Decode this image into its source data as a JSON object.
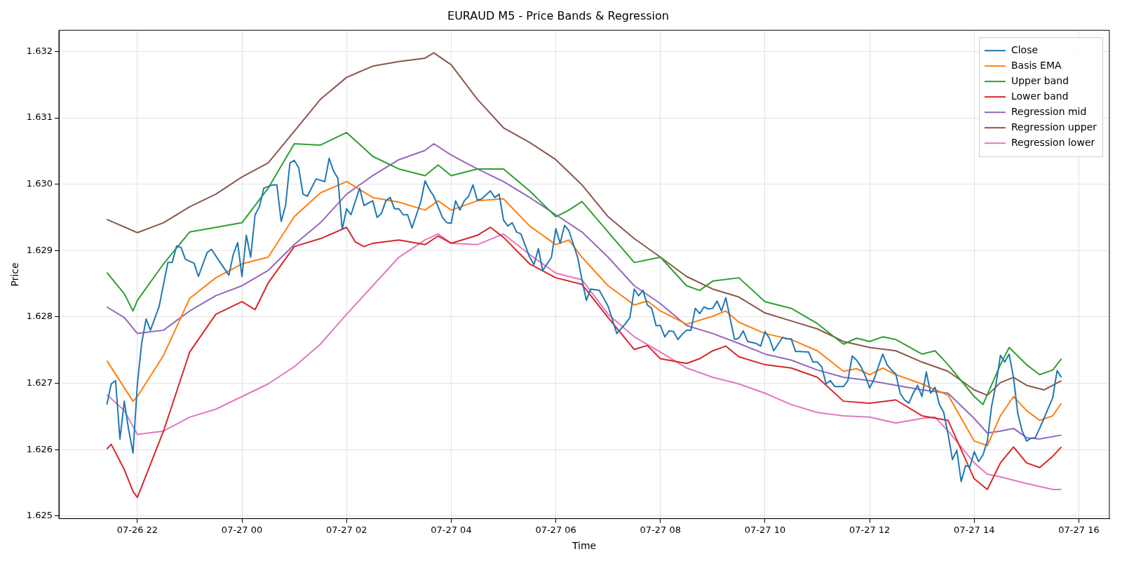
{
  "chart_data": {
    "type": "line",
    "title": "EURAUD M5 - Price Bands & Regression",
    "xlabel": "Time",
    "ylabel": "Price",
    "xlim": [
      "--07-26T20:30",
      "--07-27T16:35"
    ],
    "xticks": [
      {
        "value": "--07-26T22:00",
        "label": "07-26 22"
      },
      {
        "value": "--07-27T00:00",
        "label": "07-27 00"
      },
      {
        "value": "--07-27T02:00",
        "label": "07-27 02"
      },
      {
        "value": "--07-27T04:00",
        "label": "07-27 04"
      },
      {
        "value": "--07-27T06:00",
        "label": "07-27 06"
      },
      {
        "value": "--07-27T08:00",
        "label": "07-27 08"
      },
      {
        "value": "--07-27T10:00",
        "label": "07-27 10"
      },
      {
        "value": "--07-27T12:00",
        "label": "07-27 12"
      },
      {
        "value": "--07-27T14:00",
        "label": "07-27 14"
      },
      {
        "value": "--07-27T16:00",
        "label": "07-27 16"
      }
    ],
    "ylim": [
      1.62496,
      1.63232
    ],
    "yticks": [
      {
        "value": 1.625,
        "label": "1.625"
      },
      {
        "value": 1.626,
        "label": "1.626"
      },
      {
        "value": 1.627,
        "label": "1.627"
      },
      {
        "value": 1.628,
        "label": "1.628"
      },
      {
        "value": 1.629,
        "label": "1.629"
      },
      {
        "value": 1.63,
        "label": "1.630"
      },
      {
        "value": 1.631,
        "label": "1.631"
      },
      {
        "value": 1.632,
        "label": "1.632"
      }
    ],
    "grid": true,
    "legend": "top right",
    "marker": "none",
    "line_style": "solid",
    "series": [
      {
        "name": "Close",
        "color": "#1f77b4",
        "x": [
          "--07-26T21:25",
          "--07-26T21:30",
          "--07-26T21:35",
          "--07-26T21:40",
          "--07-26T21:45",
          "--07-26T21:50",
          "--07-26T21:55",
          "--07-26T22:00",
          "--07-26T22:05",
          "--07-26T22:10",
          "--07-26T22:15",
          "--07-26T22:25",
          "--07-26T22:35",
          "--07-26T22:40",
          "--07-26T22:45",
          "--07-26T22:50",
          "--07-26T22:55",
          "--07-26T23:05",
          "--07-26T23:10",
          "--07-26T23:20",
          "--07-26T23:25",
          "--07-26T23:35",
          "--07-26T23:45",
          "--07-26T23:50",
          "--07-26T23:55",
          "--07-27T00:00",
          "--07-27T00:05",
          "--07-27T00:10",
          "--07-27T00:15",
          "--07-27T00:20",
          "--07-27T00:25",
          "--07-27T00:35",
          "--07-27T00:40",
          "--07-27T00:45",
          "--07-27T00:50",
          "--07-27T00:55",
          "--07-27T01:00",
          "--07-27T01:05",
          "--07-27T01:10",
          "--07-27T01:15",
          "--07-27T01:25",
          "--07-27T01:35",
          "--07-27T01:40",
          "--07-27T01:45",
          "--07-27T01:50",
          "--07-27T01:55",
          "--07-27T02:00",
          "--07-27T02:05",
          "--07-27T02:15",
          "--07-27T02:20",
          "--07-27T02:30",
          "--07-27T02:35",
          "--07-27T02:40",
          "--07-27T02:45",
          "--07-27T02:50",
          "--07-27T02:55",
          "--07-27T03:00",
          "--07-27T03:05",
          "--07-27T03:10",
          "--07-27T03:15",
          "--07-27T03:25",
          "--07-27T03:30",
          "--07-27T03:35",
          "--07-27T03:40",
          "--07-27T03:50",
          "--07-27T03:55",
          "--07-27T04:00",
          "--07-27T04:05",
          "--07-27T04:10",
          "--07-27T04:15",
          "--07-27T04:20",
          "--07-27T04:25",
          "--07-27T04:30",
          "--07-27T04:35",
          "--07-27T04:45",
          "--07-27T04:50",
          "--07-27T04:55",
          "--07-27T05:00",
          "--07-27T05:05",
          "--07-27T05:10",
          "--07-27T05:15",
          "--07-27T05:20",
          "--07-27T05:30",
          "--07-27T05:35",
          "--07-27T05:40",
          "--07-27T05:45",
          "--07-27T05:55",
          "--07-27T06:00",
          "--07-27T06:05",
          "--07-27T06:10",
          "--07-27T06:15",
          "--07-27T06:25",
          "--07-27T06:30",
          "--07-27T06:35",
          "--07-27T06:40",
          "--07-27T06:50",
          "--07-27T07:00",
          "--07-27T07:10",
          "--07-27T07:20",
          "--07-27T07:25",
          "--07-27T07:30",
          "--07-27T07:35",
          "--07-27T07:40",
          "--07-27T07:45",
          "--07-27T07:50",
          "--07-27T07:55",
          "--07-27T08:00",
          "--07-27T08:05",
          "--07-27T08:10",
          "--07-27T08:15",
          "--07-27T08:20",
          "--07-27T08:25",
          "--07-27T08:30",
          "--07-27T08:35",
          "--07-27T08:40",
          "--07-27T08:45",
          "--07-27T08:50",
          "--07-27T08:55",
          "--07-27T09:00",
          "--07-27T09:05",
          "--07-27T09:10",
          "--07-27T09:15",
          "--07-27T09:25",
          "--07-27T09:30",
          "--07-27T09:35",
          "--07-27T09:40",
          "--07-27T09:50",
          "--07-27T09:55",
          "--07-27T10:00",
          "--07-27T10:05",
          "--07-27T10:10",
          "--07-27T10:15",
          "--07-27T10:20",
          "--07-27T10:25",
          "--07-27T10:30",
          "--07-27T10:35",
          "--07-27T10:40",
          "--07-27T10:50",
          "--07-27T10:55",
          "--07-27T11:00",
          "--07-27T11:05",
          "--07-27T11:10",
          "--07-27T11:15",
          "--07-27T11:20",
          "--07-27T11:30",
          "--07-27T11:35",
          "--07-27T11:40",
          "--07-27T11:45",
          "--07-27T11:50",
          "--07-27T11:55",
          "--07-27T12:00",
          "--07-27T12:05",
          "--07-27T12:10",
          "--07-27T12:15",
          "--07-27T12:20",
          "--07-27T12:25",
          "--07-27T12:30",
          "--07-27T12:35",
          "--07-27T12:40",
          "--07-27T12:45",
          "--07-27T12:50",
          "--07-27T12:55",
          "--07-27T13:00",
          "--07-27T13:05",
          "--07-27T13:10",
          "--07-27T13:15",
          "--07-27T13:20",
          "--07-27T13:25",
          "--07-27T13:30",
          "--07-27T13:35",
          "--07-27T13:40",
          "--07-27T13:45",
          "--07-27T13:50",
          "--07-27T13:55",
          "--07-27T14:00",
          "--07-27T14:05",
          "--07-27T14:10",
          "--07-27T14:15",
          "--07-27T14:20",
          "--07-27T14:25",
          "--07-27T14:30",
          "--07-27T14:35",
          "--07-27T14:40",
          "--07-27T14:45",
          "--07-27T14:50",
          "--07-27T14:55",
          "--07-27T15:00",
          "--07-27T15:05",
          "--07-27T15:10",
          "--07-27T15:15",
          "--07-27T15:20",
          "--07-27T15:25",
          "--07-27T15:30",
          "--07-27T15:35",
          "--07-27T15:40"
        ],
        "values": [
          1.62668,
          1.62699,
          1.62704,
          1.62616,
          1.62673,
          1.6263,
          1.62595,
          1.62699,
          1.62761,
          1.62797,
          1.6278,
          1.62816,
          1.62882,
          1.62882,
          1.62907,
          1.62905,
          1.62887,
          1.62881,
          1.62861,
          1.62897,
          1.62902,
          1.62882,
          1.62863,
          1.62894,
          1.62912,
          1.62861,
          1.62923,
          1.6289,
          1.62954,
          1.62966,
          1.62994,
          1.62999,
          1.62999,
          1.62944,
          1.62968,
          1.63032,
          1.63036,
          1.63025,
          1.62985,
          1.62982,
          1.63008,
          1.63004,
          1.63039,
          1.6302,
          1.63009,
          1.62932,
          1.62963,
          1.62954,
          1.62994,
          1.62968,
          1.62975,
          1.6295,
          1.62956,
          1.62975,
          1.6298,
          1.62963,
          1.62963,
          1.62954,
          1.62954,
          1.62934,
          1.62973,
          1.63005,
          1.62992,
          1.62982,
          1.6295,
          1.62942,
          1.62941,
          1.62975,
          1.62961,
          1.62975,
          1.62982,
          1.62999,
          1.62976,
          1.62978,
          1.6299,
          1.6298,
          1.62985,
          1.62946,
          1.62937,
          1.62942,
          1.62928,
          1.62925,
          1.6289,
          1.62879,
          1.62903,
          1.6287,
          1.6289,
          1.62933,
          1.62911,
          1.62938,
          1.6293,
          1.6289,
          1.62856,
          1.62825,
          1.62842,
          1.6284,
          1.62816,
          1.62775,
          1.6279,
          1.62799,
          1.62842,
          1.62832,
          1.6284,
          1.62818,
          1.62813,
          1.62787,
          1.62787,
          1.6277,
          1.62779,
          1.62778,
          1.62766,
          1.62774,
          1.6278,
          1.6278,
          1.62813,
          1.62805,
          1.62815,
          1.62812,
          1.62813,
          1.62824,
          1.62809,
          1.62829,
          1.62766,
          1.62768,
          1.62779,
          1.62763,
          1.6276,
          1.62756,
          1.62778,
          1.62768,
          1.62749,
          1.62759,
          1.62769,
          1.62767,
          1.62767,
          1.62748,
          1.62748,
          1.62747,
          1.62732,
          1.62732,
          1.62725,
          1.62699,
          1.62704,
          1.62695,
          1.62695,
          1.62704,
          1.62741,
          1.62735,
          1.62725,
          1.62711,
          1.62693,
          1.62706,
          1.62725,
          1.62744,
          1.62728,
          1.6272,
          1.62714,
          1.62685,
          1.62675,
          1.6267,
          1.62685,
          1.62697,
          1.6268,
          1.62717,
          1.62685,
          1.62694,
          1.62668,
          1.62656,
          1.62623,
          1.62585,
          1.62599,
          1.62552,
          1.62576,
          1.62574,
          1.62597,
          1.62582,
          1.62592,
          1.62613,
          1.62666,
          1.62699,
          1.62742,
          1.62732,
          1.62744,
          1.62709,
          1.62654,
          1.62628,
          1.62613,
          1.62617,
          1.62618,
          1.62632,
          1.62647,
          1.62663,
          1.62678,
          1.62719,
          1.62709
        ]
      },
      {
        "name": "Basis EMA",
        "color": "#ff7f0e",
        "x": [
          "--07-26T21:25",
          "--07-26T21:55",
          "--07-26T22:00",
          "--07-26T22:30",
          "--07-26T23:00",
          "--07-26T23:30",
          "--07-27T00:00",
          "--07-27T00:30",
          "--07-27T01:00",
          "--07-27T01:30",
          "--07-27T02:00",
          "--07-27T02:30",
          "--07-27T03:00",
          "--07-27T03:30",
          "--07-27T03:45",
          "--07-27T04:00",
          "--07-27T04:30",
          "--07-27T05:00",
          "--07-27T05:30",
          "--07-27T06:00",
          "--07-27T06:15",
          "--07-27T06:30",
          "--07-27T07:00",
          "--07-27T07:30",
          "--07-27T07:45",
          "--07-27T08:00",
          "--07-27T08:30",
          "--07-27T09:00",
          "--07-27T09:15",
          "--07-27T09:30",
          "--07-27T10:00",
          "--07-27T10:30",
          "--07-27T11:00",
          "--07-27T11:30",
          "--07-27T11:45",
          "--07-27T12:00",
          "--07-27T12:15",
          "--07-27T12:30",
          "--07-27T13:00",
          "--07-27T13:30",
          "--07-27T14:00",
          "--07-27T14:15",
          "--07-27T14:30",
          "--07-27T14:45",
          "--07-27T15:00",
          "--07-27T15:15",
          "--07-27T15:30",
          "--07-27T15:40"
        ],
        "values": [
          1.62734,
          1.62673,
          1.6268,
          1.62742,
          1.62828,
          1.62859,
          1.6288,
          1.6289,
          1.62951,
          1.62987,
          1.63004,
          1.6298,
          1.62973,
          1.62961,
          1.62975,
          1.62961,
          1.62975,
          1.62978,
          1.62937,
          1.62909,
          1.62916,
          1.6289,
          1.62847,
          1.62818,
          1.62824,
          1.62809,
          1.62789,
          1.62801,
          1.62809,
          1.62792,
          1.62775,
          1.62766,
          1.62749,
          1.62718,
          1.62722,
          1.62713,
          1.62723,
          1.62713,
          1.62699,
          1.62682,
          1.62613,
          1.62606,
          1.62651,
          1.6268,
          1.62659,
          1.62644,
          1.62651,
          1.6267
        ]
      },
      {
        "name": "Upper band",
        "color": "#2ca02c",
        "x": [
          "--07-26T21:25",
          "--07-26T21:45",
          "--07-26T21:55",
          "--07-26T22:00",
          "--07-26T22:30",
          "--07-26T23:00",
          "--07-26T23:30",
          "--07-27T00:00",
          "--07-27T00:30",
          "--07-27T01:00",
          "--07-27T01:30",
          "--07-27T02:00",
          "--07-27T02:30",
          "--07-27T03:00",
          "--07-27T03:30",
          "--07-27T03:45",
          "--07-27T04:00",
          "--07-27T04:30",
          "--07-27T05:00",
          "--07-27T05:30",
          "--07-27T06:00",
          "--07-27T06:15",
          "--07-27T06:30",
          "--07-27T07:00",
          "--07-27T07:30",
          "--07-27T08:00",
          "--07-27T08:30",
          "--07-27T08:45",
          "--07-27T09:00",
          "--07-27T09:30",
          "--07-27T10:00",
          "--07-27T10:30",
          "--07-27T11:00",
          "--07-27T11:30",
          "--07-27T11:45",
          "--07-27T12:00",
          "--07-27T12:15",
          "--07-27T12:30",
          "--07-27T13:00",
          "--07-27T13:15",
          "--07-27T13:30",
          "--07-27T14:00",
          "--07-27T14:10",
          "--07-27T14:30",
          "--07-27T14:40",
          "--07-27T15:00",
          "--07-27T15:15",
          "--07-27T15:30",
          "--07-27T15:40"
        ],
        "values": [
          1.62867,
          1.62835,
          1.62809,
          1.62825,
          1.6288,
          1.62928,
          1.62935,
          1.62942,
          1.62994,
          1.63061,
          1.63059,
          1.63078,
          1.63042,
          1.63023,
          1.63013,
          1.63029,
          1.63013,
          1.63023,
          1.63023,
          1.6299,
          1.62951,
          1.62961,
          1.62974,
          1.62928,
          1.62882,
          1.6289,
          1.62847,
          1.6284,
          1.62854,
          1.62859,
          1.62823,
          1.62813,
          1.6279,
          1.62759,
          1.62768,
          1.62763,
          1.6277,
          1.62766,
          1.62744,
          1.62749,
          1.62728,
          1.6268,
          1.62668,
          1.62728,
          1.62754,
          1.62728,
          1.62713,
          1.6272,
          1.62737
        ]
      },
      {
        "name": "Lower band",
        "color": "#d62728",
        "x": [
          "--07-26T21:25",
          "--07-26T21:30",
          "--07-26T21:45",
          "--07-26T21:55",
          "--07-26T22:00",
          "--07-26T22:30",
          "--07-26T23:00",
          "--07-26T23:30",
          "--07-27T00:00",
          "--07-27T00:15",
          "--07-27T00:30",
          "--07-27T01:00",
          "--07-27T01:30",
          "--07-27T02:00",
          "--07-27T02:10",
          "--07-27T02:20",
          "--07-27T02:30",
          "--07-27T03:00",
          "--07-27T03:30",
          "--07-27T03:45",
          "--07-27T04:00",
          "--07-27T04:30",
          "--07-27T04:45",
          "--07-27T05:00",
          "--07-27T05:30",
          "--07-27T06:00",
          "--07-27T06:30",
          "--07-27T07:00",
          "--07-27T07:30",
          "--07-27T07:45",
          "--07-27T08:00",
          "--07-27T08:30",
          "--07-27T08:45",
          "--07-27T09:00",
          "--07-27T09:15",
          "--07-27T09:30",
          "--07-27T10:00",
          "--07-27T10:30",
          "--07-27T11:00",
          "--07-27T11:30",
          "--07-27T12:00",
          "--07-27T12:30",
          "--07-27T13:00",
          "--07-27T13:30",
          "--07-27T14:00",
          "--07-27T14:15",
          "--07-27T14:30",
          "--07-27T14:45",
          "--07-27T15:00",
          "--07-27T15:15",
          "--07-27T15:30",
          "--07-27T15:40"
        ],
        "values": [
          1.62601,
          1.62608,
          1.6257,
          1.62537,
          1.62528,
          1.62628,
          1.62747,
          1.62804,
          1.62823,
          1.62811,
          1.62851,
          1.62906,
          1.62918,
          1.62935,
          1.62913,
          1.62906,
          1.62911,
          1.62916,
          1.62909,
          1.62922,
          1.62911,
          1.62923,
          1.62935,
          1.6292,
          1.6288,
          1.62859,
          1.62849,
          1.62799,
          1.62751,
          1.62757,
          1.62737,
          1.6273,
          1.62737,
          1.62749,
          1.62756,
          1.6274,
          1.62728,
          1.62723,
          1.62709,
          1.62673,
          1.6267,
          1.62675,
          1.62651,
          1.62644,
          1.62556,
          1.6254,
          1.6258,
          1.62604,
          1.6258,
          1.62573,
          1.6259,
          1.62604
        ]
      },
      {
        "name": "Regression mid",
        "color": "#9467bd",
        "x": [
          "--07-26T21:25",
          "--07-26T21:45",
          "--07-26T22:00",
          "--07-26T22:30",
          "--07-26T23:00",
          "--07-26T23:30",
          "--07-27T00:00",
          "--07-27T00:30",
          "--07-27T01:00",
          "--07-27T01:30",
          "--07-27T02:00",
          "--07-27T02:30",
          "--07-27T03:00",
          "--07-27T03:30",
          "--07-27T03:40",
          "--07-27T04:00",
          "--07-27T04:30",
          "--07-27T05:00",
          "--07-27T05:30",
          "--07-27T06:00",
          "--07-27T06:30",
          "--07-27T07:00",
          "--07-27T07:30",
          "--07-27T08:00",
          "--07-27T08:30",
          "--07-27T09:00",
          "--07-27T09:30",
          "--07-27T10:00",
          "--07-27T10:30",
          "--07-27T11:00",
          "--07-27T11:30",
          "--07-27T12:00",
          "--07-27T12:30",
          "--07-27T13:00",
          "--07-27T13:30",
          "--07-27T14:00",
          "--07-27T14:15",
          "--07-27T14:30",
          "--07-27T14:45",
          "--07-27T15:00",
          "--07-27T15:15",
          "--07-27T15:40"
        ],
        "values": [
          1.62815,
          1.62799,
          1.62775,
          1.6278,
          1.62809,
          1.62832,
          1.62847,
          1.6287,
          1.62909,
          1.62942,
          1.62985,
          1.63013,
          1.63037,
          1.63051,
          1.63061,
          1.63044,
          1.63023,
          1.63004,
          1.6298,
          1.62954,
          1.62928,
          1.6289,
          1.62847,
          1.6282,
          1.62787,
          1.62775,
          1.6276,
          1.62744,
          1.62735,
          1.6272,
          1.62709,
          1.62704,
          1.62697,
          1.6269,
          1.62685,
          1.62647,
          1.62625,
          1.62628,
          1.62632,
          1.62618,
          1.62616,
          1.62622
        ]
      },
      {
        "name": "Regression upper",
        "color": "#8c564b",
        "x": [
          "--07-26T21:25",
          "--07-26T22:00",
          "--07-26T22:30",
          "--07-26T23:00",
          "--07-26T23:30",
          "--07-27T00:00",
          "--07-27T00:30",
          "--07-27T01:00",
          "--07-27T01:30",
          "--07-27T02:00",
          "--07-27T02:30",
          "--07-27T03:00",
          "--07-27T03:30",
          "--07-27T03:40",
          "--07-27T04:00",
          "--07-27T04:30",
          "--07-27T05:00",
          "--07-27T05:30",
          "--07-27T06:00",
          "--07-27T06:30",
          "--07-27T07:00",
          "--07-27T07:30",
          "--07-27T08:00",
          "--07-27T08:30",
          "--07-27T09:00",
          "--07-27T09:30",
          "--07-27T10:00",
          "--07-27T10:30",
          "--07-27T11:00",
          "--07-27T11:30",
          "--07-27T12:00",
          "--07-27T12:30",
          "--07-27T13:00",
          "--07-27T13:30",
          "--07-27T14:00",
          "--07-27T14:15",
          "--07-27T14:30",
          "--07-27T14:45",
          "--07-27T15:00",
          "--07-27T15:20",
          "--07-27T15:40"
        ],
        "values": [
          1.62947,
          1.62927,
          1.62942,
          1.62966,
          1.62985,
          1.63011,
          1.63032,
          1.6308,
          1.63128,
          1.63161,
          1.63178,
          1.63185,
          1.6319,
          1.63198,
          1.6318,
          1.63128,
          1.63085,
          1.63063,
          1.63037,
          1.62999,
          1.62951,
          1.62918,
          1.6289,
          1.62861,
          1.62842,
          1.6283,
          1.62806,
          1.62794,
          1.62782,
          1.62763,
          1.62754,
          1.62749,
          1.62732,
          1.62718,
          1.6269,
          1.62682,
          1.62701,
          1.62709,
          1.62697,
          1.6269,
          1.62704
        ]
      },
      {
        "name": "Regression lower",
        "color": "#e377c2",
        "x": [
          "--07-26T21:25",
          "--07-26T21:45",
          "--07-26T22:00",
          "--07-26T22:30",
          "--07-26T23:00",
          "--07-26T23:30",
          "--07-27T00:00",
          "--07-27T00:30",
          "--07-27T01:00",
          "--07-27T01:30",
          "--07-27T02:00",
          "--07-27T02:30",
          "--07-27T03:00",
          "--07-27T03:30",
          "--07-27T03:45",
          "--07-27T04:00",
          "--07-27T04:30",
          "--07-27T05:00",
          "--07-27T05:30",
          "--07-27T06:00",
          "--07-27T06:30",
          "--07-27T07:00",
          "--07-27T07:30",
          "--07-27T08:00",
          "--07-27T08:30",
          "--07-27T09:00",
          "--07-27T09:30",
          "--07-27T10:00",
          "--07-27T10:30",
          "--07-27T11:00",
          "--07-27T11:30",
          "--07-27T12:00",
          "--07-27T12:30",
          "--07-27T13:00",
          "--07-27T13:15",
          "--07-27T13:30",
          "--07-27T14:00",
          "--07-27T14:15",
          "--07-27T14:30",
          "--07-27T15:00",
          "--07-27T15:30",
          "--07-27T15:40"
        ],
        "values": [
          1.62683,
          1.62659,
          1.62623,
          1.62628,
          1.62649,
          1.62661,
          1.6268,
          1.62699,
          1.62725,
          1.62759,
          1.62804,
          1.62847,
          1.6289,
          1.62916,
          1.62925,
          1.62911,
          1.62909,
          1.62925,
          1.62894,
          1.62866,
          1.62856,
          1.62804,
          1.6277,
          1.62747,
          1.62723,
          1.62709,
          1.62699,
          1.62685,
          1.62668,
          1.62656,
          1.62651,
          1.62649,
          1.6264,
          1.62647,
          1.62649,
          1.62628,
          1.6258,
          1.62563,
          1.62559,
          1.62549,
          1.6254,
          1.6254
        ]
      }
    ]
  }
}
